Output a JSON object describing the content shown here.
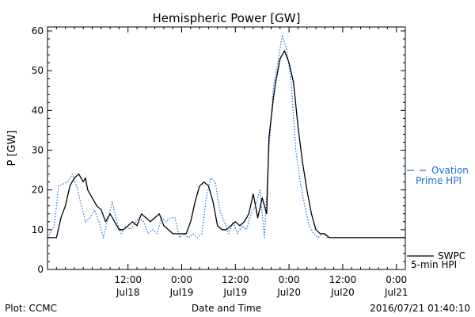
{
  "chart_data": {
    "type": "line",
    "title": "Hemispheric Power [GW]",
    "xlabel": "Date and Time",
    "ylabel": "P [GW]",
    "ylim": [
      0,
      61
    ],
    "xlim": [
      0,
      80
    ],
    "x_unit": "hours after 2016-07-17 18:00",
    "yticks": [
      0,
      10,
      20,
      30,
      40,
      50,
      60
    ],
    "xticks": [
      {
        "x": 18,
        "time": "12:00",
        "date": "Jul18"
      },
      {
        "x": 30,
        "time": "0:00",
        "date": "Jul19"
      },
      {
        "x": 42,
        "time": "12:00",
        "date": "Jul19"
      },
      {
        "x": 54,
        "time": "0:00",
        "date": "Jul20"
      },
      {
        "x": 66,
        "time": "12:00",
        "date": "Jul20"
      },
      {
        "x": 78,
        "time": "0:00",
        "date": "Jul21"
      }
    ],
    "series": [
      {
        "name": "Ovation Prime HPI",
        "color": "#1a6fd6",
        "style": "dotted",
        "x": [
          0,
          1.5,
          2.5,
          4.5,
          5.5,
          6.5,
          8.5,
          9.5,
          10.5,
          11.5,
          12.5,
          14.5,
          15.5,
          16.5,
          17.5,
          18.5,
          20.5,
          21.5,
          22.5,
          23.5,
          24.5,
          25.5,
          26.5,
          27.5,
          28.5,
          29.5,
          30.5,
          31.5,
          32.5,
          33.5,
          34.5,
          35.5,
          36.5,
          37.5,
          38.5,
          39.5,
          40.5,
          41.5,
          42.5,
          43.5,
          44.5,
          45.5,
          46.5,
          47.5,
          48.5,
          49.5,
          50.5,
          51.5,
          52.5,
          53.5,
          54.5,
          55.5,
          56.5,
          57.5,
          58.5,
          59.5,
          60.5,
          61.5,
          62.5,
          63.5,
          64.5,
          65.5,
          66.5,
          67.5,
          68.5,
          80
        ],
        "values": [
          8,
          11,
          21,
          22,
          24,
          21,
          12,
          13,
          15,
          12,
          8,
          17,
          12,
          9,
          11,
          10,
          13,
          12,
          9,
          10,
          9,
          13,
          12,
          13,
          13,
          8,
          9,
          8,
          9,
          8,
          9,
          18,
          23,
          22,
          15,
          12,
          9,
          12,
          9,
          11,
          10,
          14,
          16,
          20,
          8,
          30,
          46,
          52,
          59,
          55,
          47,
          30,
          22,
          16,
          11,
          9,
          8,
          9,
          8,
          8,
          8,
          8,
          8,
          8,
          8,
          8
        ]
      },
      {
        "name": "SWPC 5-min HPI",
        "color": "#000000",
        "style": "solid",
        "x": [
          0,
          2,
          3,
          4,
          5,
          6,
          7,
          8,
          8.5,
          9,
          10,
          11,
          12,
          13,
          14,
          15,
          16,
          17,
          18,
          19,
          20,
          21,
          22,
          23,
          24,
          25,
          26,
          27,
          28,
          29,
          30,
          31,
          32,
          33,
          34,
          35,
          36,
          37,
          38,
          39,
          40,
          41,
          42,
          43,
          44,
          45,
          46,
          47,
          48,
          49,
          49.5,
          50,
          50.5,
          51,
          52,
          53,
          54,
          55,
          56,
          57,
          58,
          59,
          60,
          61,
          62,
          63,
          64,
          65,
          66,
          67,
          68,
          80
        ],
        "values": [
          8,
          8,
          13,
          16,
          21,
          23,
          24,
          22,
          23,
          20,
          18,
          16,
          15,
          12,
          14,
          12,
          10,
          10,
          11,
          12,
          11,
          14,
          13,
          12,
          13,
          14,
          11,
          10,
          9,
          9,
          9,
          9,
          12,
          17,
          21,
          22,
          21,
          17,
          11,
          10,
          10,
          11,
          12,
          11,
          12,
          14,
          19,
          13,
          18,
          14,
          33,
          38,
          43,
          47,
          53,
          55,
          52,
          47,
          36,
          27,
          20,
          14,
          10,
          9,
          9,
          8,
          8,
          8,
          8,
          8,
          8,
          8
        ]
      }
    ]
  },
  "legend": {
    "ovation_line1": "Ovation",
    "ovation_line2": "Prime HPI",
    "swpc_line1": "SWPC",
    "swpc_line2": "5-min HPI"
  },
  "footer": {
    "plot_credit": "Plot: CCMC",
    "timestamp": "2016/07/21 01:40:10"
  }
}
